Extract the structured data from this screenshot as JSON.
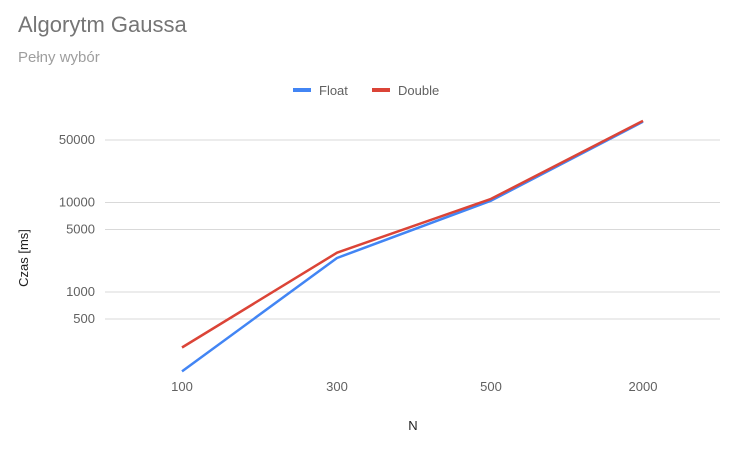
{
  "title": "Algorytm Gaussa",
  "subtitle": "Pełny wybór",
  "chart_data": {
    "type": "line",
    "title": "Algorytm Gaussa",
    "subtitle": "Pełny wybór",
    "xlabel": "N",
    "ylabel": "Czas [ms]",
    "categories": [
      "100",
      "300",
      "500",
      "2000"
    ],
    "y_scale": "log",
    "y_ticks": [
      500,
      1000,
      5000,
      10000,
      50000
    ],
    "y_tick_labels": [
      "500",
      "1000",
      "5000",
      "10000",
      "50000"
    ],
    "ylim": [
      100,
      150000
    ],
    "grid": true,
    "legend_position": "top",
    "series": [
      {
        "name": "Float",
        "color": "#4285f4",
        "values": [
          130,
          2400,
          10500,
          80000
        ]
      },
      {
        "name": "Double",
        "color": "#db4437",
        "values": [
          240,
          2750,
          11000,
          82000
        ]
      }
    ]
  }
}
